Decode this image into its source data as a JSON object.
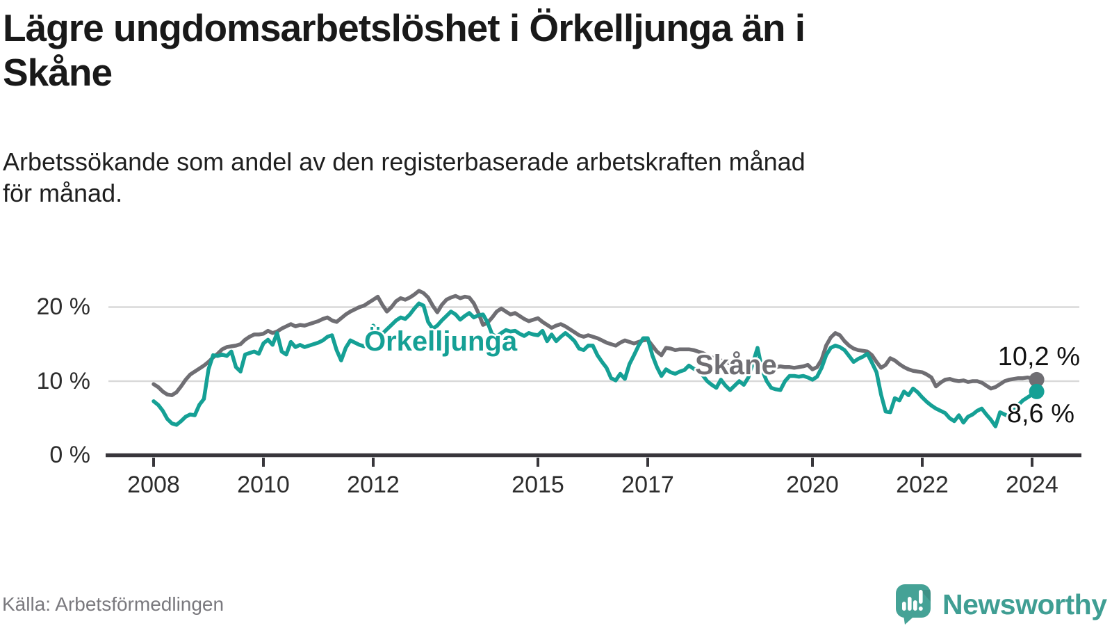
{
  "header": {
    "title": "Lägre ungdomsarbetslöshet i Örkelljunga än i\nSkåne",
    "subtitle": "Arbetssökande som andel av den registerbaserade arbetskraften månad\nför månad."
  },
  "footer": {
    "source": "Källa: Arbetsförmedlingen",
    "brand": "Newsworthy"
  },
  "colors": {
    "skane_line": "#6f6e73",
    "orkelljunga_line": "#15a095",
    "grid": "#d9d9d9",
    "axis": "#38363b",
    "tick_text": "#2d2d2d",
    "end_label_text": "#111111",
    "brand_teal": "#3f9e93",
    "brand_icon_teal": "#45a296"
  },
  "chart_data": {
    "type": "line",
    "unit": "percent",
    "frequency": "monthly",
    "x_start": "2008-01",
    "x_end": "2024-02",
    "grid": "horizontal",
    "y_ticks": [
      0,
      10,
      20
    ],
    "y_tick_labels": [
      "0 %",
      "10 %",
      "20 %"
    ],
    "ylim": [
      0,
      24
    ],
    "x_ticks": [
      2008,
      2010,
      2012,
      2015,
      2017,
      2020,
      2022,
      2024
    ],
    "series": [
      {
        "name": "Skåne",
        "color": "#6f6e73",
        "end_label": "10,2 %",
        "end_value": 10.2,
        "values": [
          9.6,
          9.2,
          8.6,
          8.2,
          8.1,
          8.5,
          9.3,
          10.2,
          10.9,
          11.3,
          11.7,
          12.1,
          12.6,
          13.2,
          13.7,
          14.3,
          14.6,
          14.7,
          14.8,
          15.0,
          15.6,
          16.0,
          16.3,
          16.3,
          16.4,
          16.8,
          16.5,
          16.7,
          17.1,
          17.4,
          17.7,
          17.4,
          17.6,
          17.5,
          17.7,
          17.9,
          18.1,
          18.4,
          18.6,
          18.2,
          18.0,
          18.5,
          19.0,
          19.4,
          19.7,
          20.0,
          20.2,
          20.6,
          21.0,
          21.4,
          20.3,
          19.4,
          20.0,
          20.8,
          21.2,
          21.0,
          21.3,
          21.7,
          22.2,
          21.9,
          21.3,
          20.2,
          19.3,
          20.3,
          21.0,
          21.3,
          21.5,
          21.2,
          21.4,
          21.3,
          20.5,
          19.2,
          17.6,
          17.9,
          18.6,
          19.4,
          19.8,
          19.4,
          19.0,
          19.2,
          18.8,
          18.4,
          18.1,
          18.3,
          18.5,
          18.0,
          17.6,
          17.2,
          17.5,
          17.7,
          17.4,
          17.0,
          16.6,
          16.2,
          16.0,
          16.2,
          16.0,
          15.8,
          15.5,
          15.2,
          15.0,
          14.8,
          15.2,
          15.5,
          15.3,
          15.1,
          15.3,
          15.5,
          15.6,
          14.8,
          14.0,
          13.5,
          14.5,
          14.4,
          14.2,
          14.3,
          14.3,
          14.3,
          14.2,
          14.0,
          13.8,
          13.5,
          13.2,
          13.0,
          12.8,
          12.6,
          12.4,
          12.3,
          12.2,
          12.1,
          12.0,
          12.2,
          12.4,
          12.1,
          11.9,
          11.8,
          11.9,
          12.0,
          11.9,
          11.9,
          11.8,
          11.9,
          12.0,
          12.2,
          11.6,
          11.9,
          12.9,
          14.8,
          15.9,
          16.5,
          16.2,
          15.4,
          14.8,
          14.4,
          14.2,
          14.1,
          14.0,
          13.5,
          12.6,
          11.8,
          12.2,
          13.1,
          12.8,
          12.3,
          11.9,
          11.6,
          11.4,
          11.3,
          11.2,
          10.9,
          10.5,
          9.3,
          9.8,
          10.2,
          10.3,
          10.1,
          10.0,
          10.1,
          9.9,
          10.0,
          10.0,
          9.8,
          9.4,
          9.0,
          9.2,
          9.6,
          10.0,
          10.2,
          10.3,
          10.4,
          10.4,
          10.5,
          10.4,
          10.2
        ]
      },
      {
        "name": "Örkelljunga",
        "color": "#15a095",
        "end_label": "8,6 %",
        "end_value": 8.6,
        "values": [
          7.3,
          6.8,
          6.0,
          4.9,
          4.3,
          4.1,
          4.6,
          5.2,
          5.5,
          5.4,
          6.8,
          7.6,
          11.6,
          13.5,
          13.4,
          13.6,
          13.4,
          14.0,
          11.9,
          11.3,
          13.6,
          13.8,
          14.0,
          13.7,
          15.1,
          15.6,
          14.9,
          16.5,
          14.0,
          13.6,
          15.3,
          14.6,
          14.9,
          14.6,
          14.8,
          15.0,
          15.2,
          15.5,
          16.0,
          16.2,
          14.2,
          12.8,
          14.5,
          15.5,
          15.2,
          14.9,
          14.7,
          15.4,
          17.5,
          16.8,
          16.4,
          17.0,
          17.6,
          18.2,
          18.6,
          18.4,
          19.0,
          19.8,
          20.5,
          20.2,
          18.0,
          17.1,
          17.5,
          18.2,
          18.8,
          19.4,
          19.0,
          18.3,
          18.8,
          19.2,
          18.6,
          18.9,
          19.0,
          17.9,
          16.3,
          16.0,
          16.5,
          16.9,
          16.7,
          16.8,
          16.4,
          16.1,
          16.5,
          16.3,
          16.2,
          16.8,
          15.4,
          16.3,
          15.4,
          16.0,
          16.5,
          16.0,
          15.4,
          14.4,
          14.2,
          14.8,
          14.8,
          13.5,
          12.6,
          11.8,
          10.4,
          10.1,
          11.0,
          10.3,
          12.3,
          13.5,
          14.8,
          15.8,
          15.8,
          13.5,
          11.9,
          10.7,
          11.6,
          11.2,
          11.0,
          11.3,
          11.5,
          12.1,
          11.7,
          11.4,
          10.8,
          10.0,
          9.5,
          9.1,
          10.2,
          9.4,
          8.8,
          9.4,
          10.0,
          9.5,
          10.5,
          12.5,
          14.5,
          11.5,
          10.0,
          9.1,
          8.9,
          8.8,
          10.0,
          10.7,
          10.7,
          10.6,
          10.7,
          10.5,
          10.2,
          10.6,
          11.8,
          13.5,
          14.5,
          14.8,
          14.6,
          14.2,
          13.4,
          12.6,
          13.0,
          13.3,
          13.7,
          12.5,
          11.2,
          8.2,
          5.9,
          5.8,
          7.7,
          7.4,
          8.6,
          8.1,
          9.0,
          8.5,
          7.8,
          7.2,
          6.7,
          6.3,
          6.0,
          5.7,
          5.0,
          4.6,
          5.4,
          4.4,
          5.2,
          5.5,
          6.0,
          6.3,
          5.5,
          4.8,
          3.9,
          5.8,
          5.5,
          5.2,
          6.0,
          6.8,
          7.4,
          7.8,
          8.2,
          8.6
        ]
      }
    ]
  }
}
